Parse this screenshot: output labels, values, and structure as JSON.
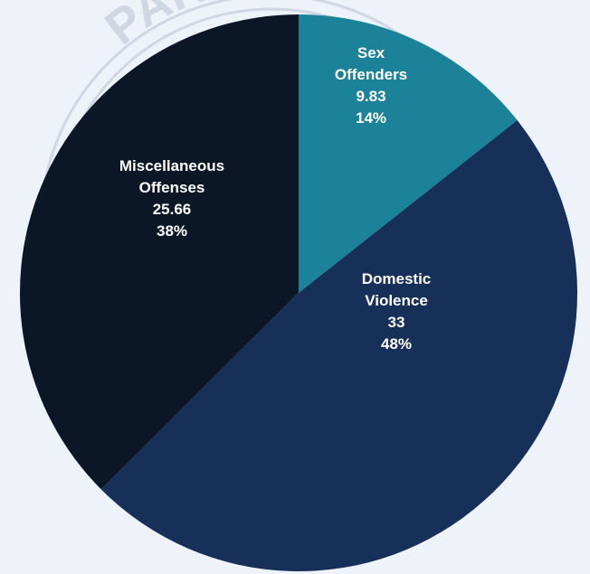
{
  "watermark": {
    "text": "PARTM"
  },
  "chart_data": {
    "type": "pie",
    "title": "",
    "start_angle_deg": 0,
    "direction": "clockwise",
    "slices": [
      {
        "label_lines": [
          "Sex",
          "Offenders"
        ],
        "value": 9.83,
        "value_text": "9.83",
        "percent_text": "14%",
        "color": "#1b8299"
      },
      {
        "label_lines": [
          "Domestic",
          "Violence"
        ],
        "value": 33,
        "value_text": "33",
        "percent_text": "48%",
        "color": "#17305a"
      },
      {
        "label_lines": [
          "Miscellaneous",
          "Offenses"
        ],
        "value": 25.66,
        "value_text": "25.66",
        "percent_text": "38%",
        "color": "#0b1727"
      }
    ],
    "data_labels": "inside",
    "legend": "none"
  }
}
